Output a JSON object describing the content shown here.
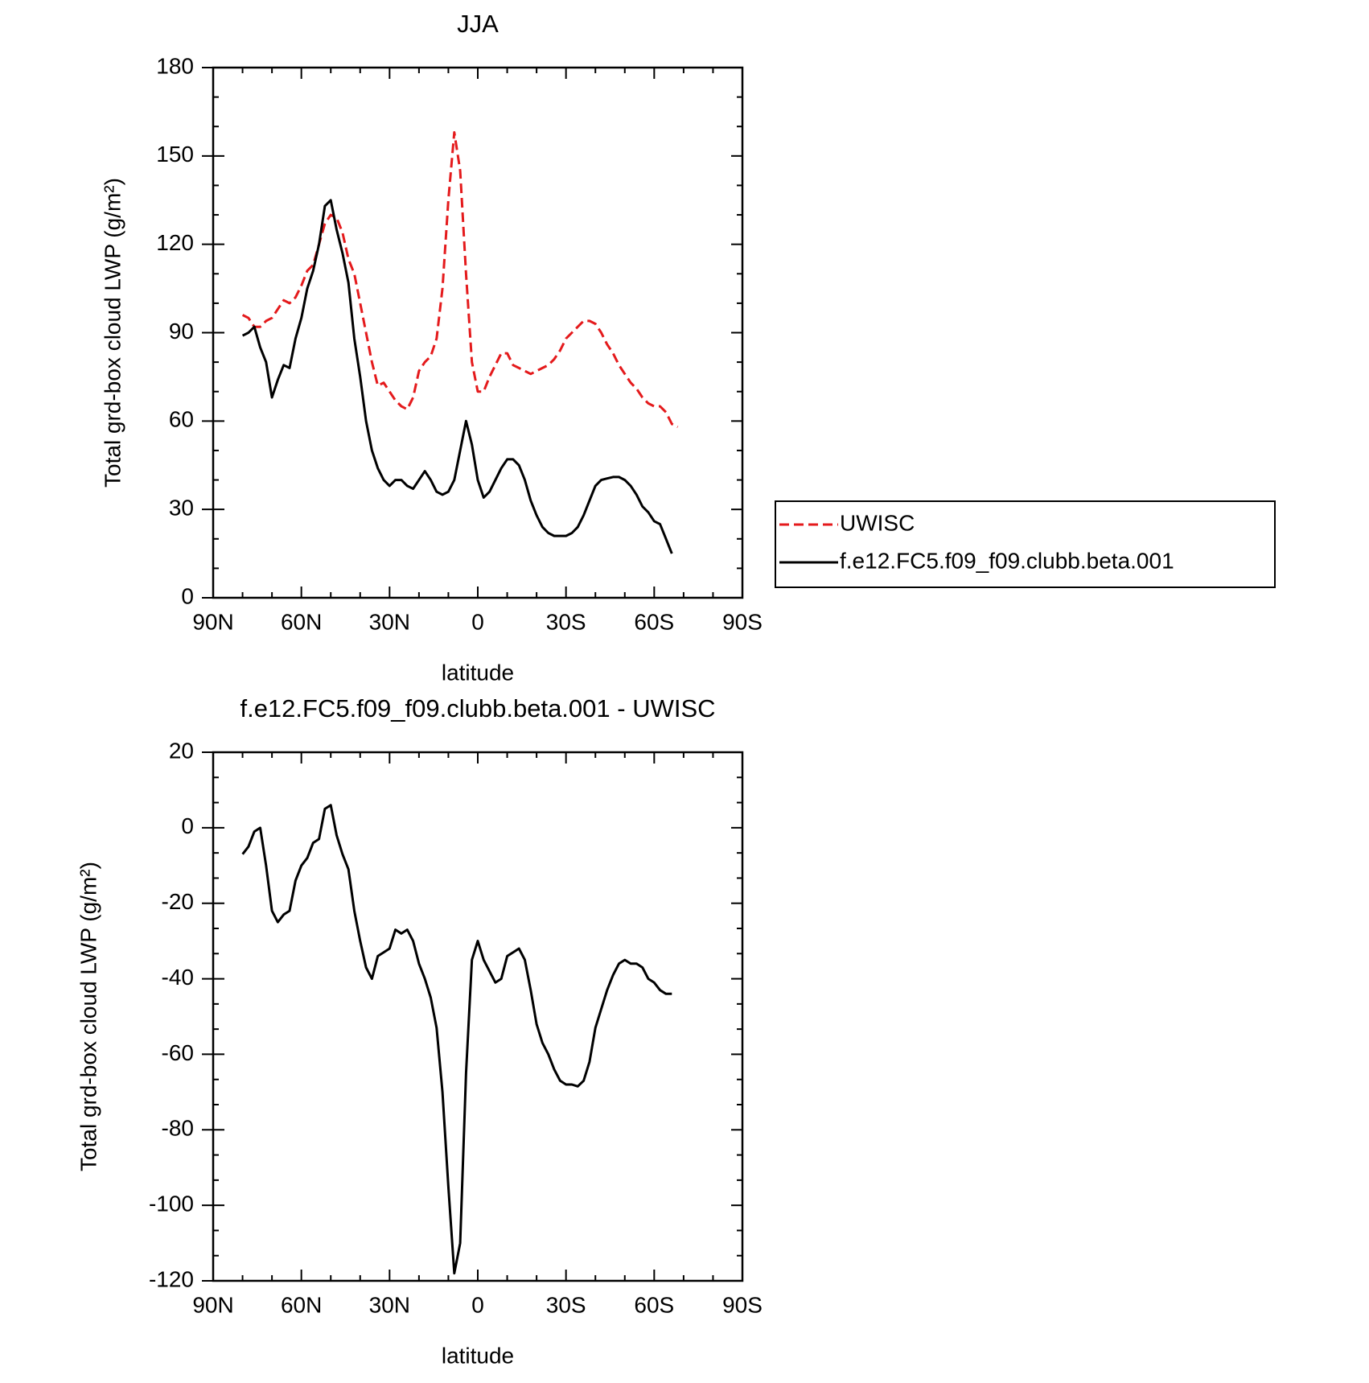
{
  "chart_data": [
    {
      "type": "line",
      "title": "JJA",
      "xlabel": "latitude",
      "ylabel": "Total grd-box cloud LWP (g/m²)",
      "x": [
        80,
        78,
        76,
        74,
        72,
        70,
        68,
        66,
        64,
        62,
        60,
        58,
        56,
        54,
        52,
        50,
        48,
        46,
        44,
        42,
        40,
        38,
        36,
        34,
        32,
        30,
        28,
        26,
        24,
        22,
        20,
        18,
        16,
        14,
        12,
        10,
        8,
        6,
        4,
        2,
        0,
        -2,
        -4,
        -6,
        -8,
        -10,
        -12,
        -14,
        -16,
        -18,
        -20,
        -22,
        -24,
        -26,
        -28,
        -30,
        -32,
        -34,
        -36,
        -38,
        -40,
        -42,
        -44,
        -46,
        -48,
        -50,
        -52,
        -54,
        -56,
        -58,
        -60,
        -62,
        -64,
        -66,
        -68
      ],
      "series": [
        {
          "name": "UWISC",
          "color": "#e41a1c",
          "dash": true,
          "values": [
            96,
            95,
            92,
            92,
            94,
            95,
            98,
            101,
            100,
            102,
            106,
            111,
            113,
            120,
            127,
            130,
            129,
            124,
            115,
            110,
            100,
            90,
            80,
            72,
            73,
            70,
            67,
            65,
            64,
            68,
            77,
            80,
            82,
            88,
            105,
            135,
            158,
            145,
            110,
            80,
            70,
            70,
            75,
            79,
            83,
            83,
            79,
            78,
            77,
            76,
            77,
            78,
            79,
            81,
            84,
            88,
            90,
            92,
            94,
            94,
            93,
            90,
            86,
            83,
            79,
            76,
            73,
            71,
            68,
            66,
            65,
            65,
            63,
            59,
            58
          ]
        },
        {
          "name": "f.e12.FC5.f09_f09.clubb.beta.001",
          "color": "#000000",
          "dash": false,
          "values": [
            89,
            90,
            92,
            85,
            80,
            68,
            74,
            79,
            78,
            88,
            95,
            105,
            111,
            120,
            133,
            135,
            125,
            117,
            107,
            88,
            75,
            60,
            50,
            44,
            40,
            38,
            40,
            40,
            38,
            37,
            40,
            43,
            40,
            36,
            35,
            36,
            40,
            50,
            60,
            52,
            40,
            34,
            36,
            40,
            44,
            47,
            47,
            45,
            40,
            33,
            28,
            24,
            22,
            21,
            21,
            21,
            22,
            24,
            28,
            33,
            38,
            40,
            40.5,
            41,
            41,
            40,
            38,
            35,
            31,
            29,
            26,
            25,
            20,
            15,
            null
          ]
        }
      ],
      "xlim": [
        90,
        -90
      ],
      "xticks": [
        {
          "value": 90,
          "label": "90N"
        },
        {
          "value": 60,
          "label": "60N"
        },
        {
          "value": 30,
          "label": "30N"
        },
        0,
        {
          "value": -30,
          "label": "30S"
        },
        {
          "value": -60,
          "label": "60S"
        },
        {
          "value": -90,
          "label": "90S"
        }
      ],
      "ylim": [
        0,
        180
      ],
      "yticks": [
        0,
        30,
        60,
        90,
        120,
        150,
        180
      ],
      "legend": "right"
    },
    {
      "type": "line",
      "title": "f.e12.FC5.f09_f09.clubb.beta.001 - UWISC",
      "xlabel": "latitude",
      "ylabel": "Total grd-box cloud LWP (g/m²)",
      "x": [
        80,
        78,
        76,
        74,
        72,
        70,
        68,
        66,
        64,
        62,
        60,
        58,
        56,
        54,
        52,
        50,
        48,
        46,
        44,
        42,
        40,
        38,
        36,
        34,
        32,
        30,
        28,
        26,
        24,
        22,
        20,
        18,
        16,
        14,
        12,
        10,
        8,
        6,
        4,
        2,
        0,
        -2,
        -4,
        -6,
        -8,
        -10,
        -12,
        -14,
        -16,
        -18,
        -20,
        -22,
        -24,
        -26,
        -28,
        -30,
        -32,
        -34,
        -36,
        -38,
        -40,
        -42,
        -44,
        -46,
        -48,
        -50,
        -52,
        -54,
        -56,
        -58,
        -60,
        -62,
        -64,
        -66
      ],
      "series": [
        {
          "color": "#000000",
          "dash": false,
          "values": [
            -7,
            -5,
            -1,
            0,
            -10,
            -22,
            -25,
            -23,
            -22,
            -14,
            -10,
            -8,
            -4,
            -3,
            5,
            6,
            -2,
            -7,
            -11,
            -22,
            -30,
            -37,
            -40,
            -34,
            -33,
            -32,
            -27,
            -28,
            -27,
            -30,
            -36,
            -40,
            -45,
            -53,
            -70,
            -95,
            -118,
            -110,
            -65,
            -35,
            -30,
            -35,
            -38,
            -41,
            -40,
            -34,
            -33,
            -32,
            -35,
            -43,
            -52,
            -57,
            -60,
            -64,
            -67,
            -68,
            -68,
            -68.5,
            -67,
            -62,
            -53,
            -48,
            -43,
            -39,
            -36,
            -35,
            -36,
            -36,
            -37,
            -40,
            -41,
            -43,
            -44,
            -44
          ]
        }
      ],
      "xlim": [
        90,
        -90
      ],
      "xticks": [
        {
          "value": 90,
          "label": "90N"
        },
        {
          "value": 60,
          "label": "60N"
        },
        {
          "value": 30,
          "label": "30N"
        },
        0,
        {
          "value": -30,
          "label": "30S"
        },
        {
          "value": -60,
          "label": "60S"
        },
        {
          "value": -90,
          "label": "90S"
        }
      ],
      "ylim": [
        -120,
        20
      ],
      "yticks": [
        -120,
        -100,
        -80,
        -60,
        -40,
        -20,
        0,
        20
      ]
    }
  ]
}
